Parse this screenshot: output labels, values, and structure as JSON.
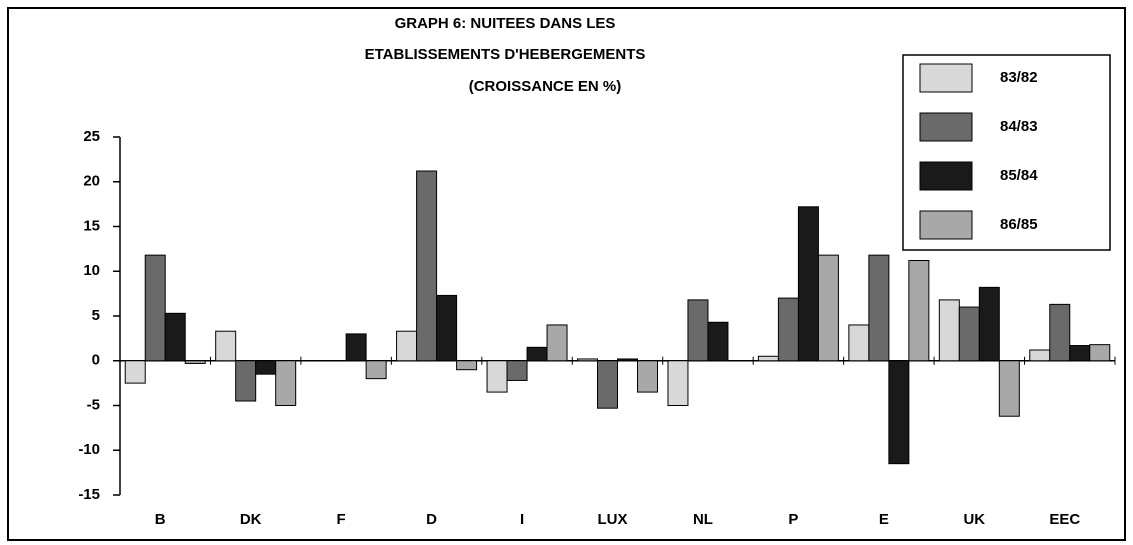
{
  "chart_data": {
    "type": "bar",
    "title_lines": [
      "GRAPH 6: NUITEES DANS LES",
      "ETABLISSEMENTS D'HEBERGEMENTS",
      "(CROISSANCE EN %)"
    ],
    "categories": [
      "B",
      "DK",
      "F",
      "D",
      "I",
      "LUX",
      "NL",
      "P",
      "E",
      "UK",
      "EEC"
    ],
    "series": [
      {
        "name": "83/82",
        "color": "#d8d8d8",
        "values": [
          -2.5,
          3.3,
          0,
          3.3,
          -3.5,
          0.2,
          -5,
          0.5,
          4,
          6.8,
          1.2
        ]
      },
      {
        "name": "84/83",
        "color": "#6a6a6a",
        "values": [
          11.8,
          -4.5,
          0,
          21.2,
          -2.2,
          -5.3,
          6.8,
          7,
          11.8,
          6,
          6.3
        ]
      },
      {
        "name": "85/84",
        "color": "#1a1a1a",
        "values": [
          5.3,
          -1.5,
          3,
          7.3,
          1.5,
          0.2,
          4.3,
          17.2,
          -11.5,
          8.2,
          1.7
        ]
      },
      {
        "name": "86/85",
        "color": "#a8a8a8",
        "values": [
          -0.3,
          -5,
          -2,
          -1,
          4,
          -3.5,
          0,
          11.8,
          11.2,
          -6.2,
          1.8
        ]
      }
    ],
    "ylim": [
      -15,
      25
    ],
    "yticks": [
      -15,
      -10,
      -5,
      0,
      5,
      10,
      15,
      20,
      25
    ]
  }
}
